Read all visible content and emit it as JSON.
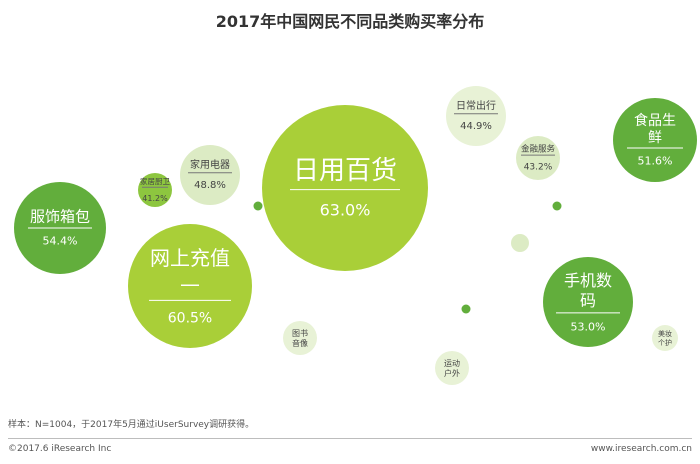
{
  "title": "2017年中国网民不同品类购买率分布",
  "chart_data": {
    "type": "bubble",
    "title": "2017年中国网民不同品类购买率分布",
    "categories": [
      {
        "lines": [
          "日用百货"
        ],
        "value_label": "63.0%",
        "value": 63.0
      },
      {
        "lines": [
          "网上充值",
          "—"
        ],
        "value_label": "60.5%",
        "value": 60.5
      },
      {
        "lines": [
          "服饰箱包"
        ],
        "value_label": "54.4%",
        "value": 54.4
      },
      {
        "lines": [
          "手机数",
          "码"
        ],
        "value_label": "53.0%",
        "value": 53.0
      },
      {
        "lines": [
          "食品生",
          "鲜"
        ],
        "value_label": "51.6%",
        "value": 51.6
      },
      {
        "lines": [
          "家用电器"
        ],
        "value_label": "48.8%",
        "value": 48.8
      },
      {
        "lines": [
          "日常出行"
        ],
        "value_label": "44.9%",
        "value": 44.9
      },
      {
        "lines": [
          "金融服务"
        ],
        "value_label": "43.2%",
        "value": 43.2
      },
      {
        "lines": [
          "家居厨卫"
        ],
        "value_label": "41.2%",
        "value": 41.2
      },
      {
        "lines": [
          "图书",
          "音像"
        ],
        "value_label": "",
        "value": null
      },
      {
        "lines": [
          "运动",
          "户外"
        ],
        "value_label": "",
        "value": null
      },
      {
        "lines": [
          "美妆",
          "个护"
        ],
        "value_label": "",
        "value": null
      }
    ],
    "decorative_dots": 4,
    "colors": {
      "dark": "#62ae3c",
      "medium": "#8dc63f",
      "lime": "#a9cf38",
      "pale": "#dcebc4",
      "lightest": "#e8f2d6",
      "divider_dark": "#ffffff",
      "divider_light": "#777777",
      "text_on_dark": "#ffffff",
      "text_on_light": "#444444"
    }
  },
  "footer": {
    "note": "样本：N=1004，于2017年5月通过iUserSurvey调研获得。",
    "copyright": "©2017.6 iResearch Inc",
    "website": "www.iresearch.com.cn"
  }
}
